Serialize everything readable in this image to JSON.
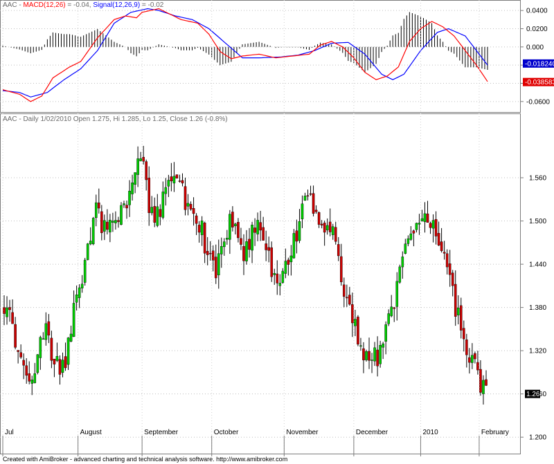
{
  "footer": "Created with AmiBroker - advanced charting and technical analysis software. http://www.amibroker.com",
  "chart_data": [
    {
      "type": "line",
      "panel": "macd",
      "title_parts": [
        {
          "text": "AAC - ",
          "color": "#6a6a6a"
        },
        {
          "text": "MACD(12,26)",
          "color": "#ff0000"
        },
        {
          "text": " = -0.04, ",
          "color": "#6a6a6a"
        },
        {
          "text": "Signal(12,26,9)",
          "color": "#0000ff"
        },
        {
          "text": " = -0.02",
          "color": "#6a6a6a"
        }
      ],
      "ylim": [
        -0.07,
        0.05
      ],
      "y_ticks": [
        {
          "value": 0.04,
          "label": "0.0400"
        },
        {
          "value": 0.02,
          "label": "0.0200"
        },
        {
          "value": 0.0,
          "label": "0.000"
        },
        {
          "value": -0.02,
          "label": "-0.0200"
        },
        {
          "value": -0.04,
          "label": "-0.0400"
        },
        {
          "value": -0.06,
          "label": "-0.0600"
        }
      ],
      "badges": [
        {
          "label": "-0.018240",
          "value": -0.01824,
          "bg": "#0000cc"
        },
        {
          "label": "-0.038583",
          "value": -0.038583,
          "bg": "#e00000"
        }
      ],
      "colors": {
        "macd": "#ff0000",
        "signal": "#0000ff",
        "histogram": "#000000"
      },
      "grid": true,
      "series": [
        {
          "name": "MACD(12,26)",
          "key": "macd",
          "knots": [
            [
              0,
              -0.047
            ],
            [
              6,
              -0.052
            ],
            [
              10,
              -0.06
            ],
            [
              14,
              -0.054
            ],
            [
              18,
              -0.034
            ],
            [
              24,
              -0.022
            ],
            [
              28,
              -0.016
            ],
            [
              34,
              0.01
            ],
            [
              40,
              0.03
            ],
            [
              44,
              0.034
            ],
            [
              48,
              0.032
            ],
            [
              50,
              0.038
            ],
            [
              56,
              0.042
            ],
            [
              60,
              0.036
            ],
            [
              64,
              0.03
            ],
            [
              70,
              0.026
            ],
            [
              74,
              0.014
            ],
            [
              78,
              -0.005
            ],
            [
              82,
              -0.013
            ],
            [
              86,
              -0.01
            ],
            [
              92,
              -0.008
            ],
            [
              98,
              -0.012
            ],
            [
              104,
              -0.01
            ],
            [
              110,
              -0.008
            ],
            [
              114,
              0.002
            ],
            [
              118,
              0.006
            ],
            [
              122,
              0.0
            ],
            [
              126,
              -0.012
            ],
            [
              130,
              -0.028
            ],
            [
              134,
              -0.036
            ],
            [
              138,
              -0.032
            ],
            [
              142,
              -0.022
            ],
            [
              146,
              0.006
            ],
            [
              150,
              0.02
            ],
            [
              154,
              0.028
            ],
            [
              158,
              0.022
            ],
            [
              162,
              0.012
            ],
            [
              166,
              -0.004
            ],
            [
              170,
              -0.02
            ],
            [
              174,
              -0.038
            ]
          ]
        },
        {
          "name": "Signal(12,26,9)",
          "key": "signal",
          "knots": [
            [
              0,
              -0.048
            ],
            [
              6,
              -0.05
            ],
            [
              10,
              -0.055
            ],
            [
              16,
              -0.05
            ],
            [
              22,
              -0.036
            ],
            [
              28,
              -0.024
            ],
            [
              34,
              -0.004
            ],
            [
              40,
              0.026
            ],
            [
              46,
              0.038
            ],
            [
              52,
              0.042
            ],
            [
              56,
              0.04
            ],
            [
              62,
              0.034
            ],
            [
              68,
              0.03
            ],
            [
              74,
              0.02
            ],
            [
              80,
              0.004
            ],
            [
              86,
              -0.012
            ],
            [
              92,
              -0.012
            ],
            [
              100,
              -0.011
            ],
            [
              106,
              -0.009
            ],
            [
              112,
              -0.004
            ],
            [
              118,
              0.004
            ],
            [
              124,
              0.005
            ],
            [
              130,
              -0.008
            ],
            [
              136,
              -0.03
            ],
            [
              140,
              -0.036
            ],
            [
              144,
              -0.03
            ],
            [
              150,
              -0.004
            ],
            [
              156,
              0.016
            ],
            [
              160,
              0.02
            ],
            [
              166,
              0.012
            ],
            [
              170,
              -0.004
            ],
            [
              174,
              -0.02
            ]
          ]
        }
      ]
    },
    {
      "type": "candlestick",
      "panel": "price",
      "title": "AAC - Daily 1/02/2010 Open 1.275, Hi 1.285, Lo 1.25, Close 1.26 (-0.8%)",
      "ylim": [
        1.181,
        1.632
      ],
      "y_ticks": [
        {
          "value": 1.56,
          "label": "1.560"
        },
        {
          "value": 1.5,
          "label": "1.500"
        },
        {
          "value": 1.44,
          "label": "1.440"
        },
        {
          "value": 1.38,
          "label": "1.380"
        },
        {
          "value": 1.32,
          "label": "1.320"
        },
        {
          "value": 1.26,
          "label": "1.260"
        },
        {
          "value": 1.2,
          "label": "1.200"
        }
      ],
      "last_price_label": {
        "label": "1.26",
        "value": 1.26
      },
      "x_labels": [
        {
          "label": "Jul",
          "bar": 0
        },
        {
          "label": "August",
          "bar": 27
        },
        {
          "label": "September",
          "bar": 50
        },
        {
          "label": "October",
          "bar": 75
        },
        {
          "label": "November",
          "bar": 101
        },
        {
          "label": "December",
          "bar": 126
        },
        {
          "label": "2010",
          "bar": 150
        },
        {
          "label": "February",
          "bar": 171
        }
      ],
      "colors": {
        "up": "#00cc00",
        "down": "#cc0000",
        "wick": "#000000"
      },
      "grid": true,
      "bar_count": 174,
      "close_knots": [
        [
          0,
          1.385
        ],
        [
          4,
          1.35
        ],
        [
          6,
          1.3
        ],
        [
          10,
          1.26
        ],
        [
          12,
          1.31
        ],
        [
          14,
          1.34
        ],
        [
          16,
          1.36
        ],
        [
          18,
          1.3
        ],
        [
          22,
          1.3
        ],
        [
          25,
          1.36
        ],
        [
          27,
          1.4
        ],
        [
          30,
          1.45
        ],
        [
          32,
          1.5
        ],
        [
          34,
          1.53
        ],
        [
          36,
          1.48
        ],
        [
          38,
          1.5
        ],
        [
          40,
          1.52
        ],
        [
          42,
          1.5
        ],
        [
          44,
          1.52
        ],
        [
          46,
          1.54
        ],
        [
          48,
          1.57
        ],
        [
          50,
          1.58
        ],
        [
          52,
          1.53
        ],
        [
          54,
          1.52
        ],
        [
          56,
          1.5
        ],
        [
          58,
          1.55
        ],
        [
          60,
          1.555
        ],
        [
          62,
          1.56
        ],
        [
          64,
          1.56
        ],
        [
          66,
          1.52
        ],
        [
          68,
          1.51
        ],
        [
          70,
          1.5
        ],
        [
          72,
          1.48
        ],
        [
          74,
          1.45
        ],
        [
          76,
          1.43
        ],
        [
          78,
          1.44
        ],
        [
          80,
          1.47
        ],
        [
          82,
          1.5
        ],
        [
          84,
          1.49
        ],
        [
          86,
          1.46
        ],
        [
          88,
          1.46
        ],
        [
          90,
          1.49
        ],
        [
          92,
          1.5
        ],
        [
          94,
          1.47
        ],
        [
          96,
          1.44
        ],
        [
          98,
          1.43
        ],
        [
          100,
          1.42
        ],
        [
          102,
          1.44
        ],
        [
          104,
          1.47
        ],
        [
          106,
          1.49
        ],
        [
          108,
          1.52
        ],
        [
          110,
          1.54
        ],
        [
          112,
          1.52
        ],
        [
          114,
          1.5
        ],
        [
          116,
          1.49
        ],
        [
          118,
          1.48
        ],
        [
          120,
          1.46
        ],
        [
          122,
          1.42
        ],
        [
          124,
          1.38
        ],
        [
          126,
          1.36
        ],
        [
          128,
          1.33
        ],
        [
          130,
          1.31
        ],
        [
          132,
          1.3
        ],
        [
          134,
          1.31
        ],
        [
          136,
          1.32
        ],
        [
          138,
          1.35
        ],
        [
          140,
          1.38
        ],
        [
          142,
          1.42
        ],
        [
          144,
          1.46
        ],
        [
          146,
          1.49
        ],
        [
          148,
          1.49
        ],
        [
          150,
          1.495
        ],
        [
          152,
          1.5
        ],
        [
          154,
          1.49
        ],
        [
          156,
          1.47
        ],
        [
          158,
          1.45
        ],
        [
          160,
          1.42
        ],
        [
          162,
          1.39
        ],
        [
          164,
          1.36
        ],
        [
          166,
          1.33
        ],
        [
          168,
          1.3
        ],
        [
          170,
          1.29
        ],
        [
          172,
          1.27
        ],
        [
          174,
          1.26
        ]
      ]
    }
  ]
}
